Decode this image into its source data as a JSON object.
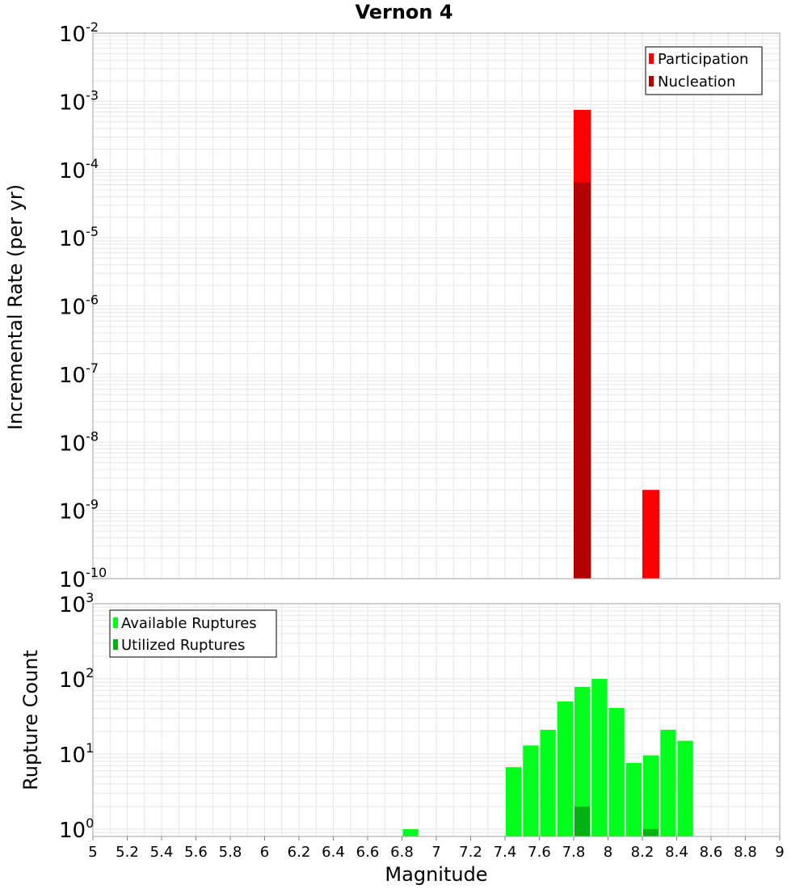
{
  "chart_data": [
    {
      "type": "bar",
      "title": "Vernon 4",
      "xlabel": "",
      "ylabel": "Incremental Rate (per yr)",
      "yscale": "log",
      "xlim": [
        5,
        9
      ],
      "ylim": [
        1e-10,
        0.01
      ],
      "yticks": [
        {
          "base": "10",
          "exp": "-2",
          "value": 0.01
        },
        {
          "base": "10",
          "exp": "-3",
          "value": 0.001
        },
        {
          "base": "10",
          "exp": "-4",
          "value": 0.0001
        },
        {
          "base": "10",
          "exp": "-5",
          "value": 1e-05
        },
        {
          "base": "10",
          "exp": "-6",
          "value": 1e-06
        },
        {
          "base": "10",
          "exp": "-7",
          "value": 1e-07
        },
        {
          "base": "10",
          "exp": "-8",
          "value": 1e-08
        },
        {
          "base": "10",
          "exp": "-9",
          "value": 1e-09
        },
        {
          "base": "10",
          "exp": "-10",
          "value": 1e-10
        }
      ],
      "grid": true,
      "legend_position": "top-right",
      "series": [
        {
          "name": "Participation",
          "color": "#ff0000",
          "points": [
            {
              "x": 7.85,
              "y": 0.00075
            },
            {
              "x": 8.25,
              "y": 2e-09
            }
          ]
        },
        {
          "name": "Nucleation",
          "color": "#b30000",
          "points": [
            {
              "x": 7.85,
              "y": 6.5e-05
            }
          ]
        }
      ]
    },
    {
      "type": "bar",
      "title": "",
      "xlabel": "Magnitude",
      "ylabel": "Rupture Count",
      "yscale": "log",
      "xlim": [
        5,
        9
      ],
      "ylim": [
        0.8,
        1000
      ],
      "yticks": [
        {
          "base": "10",
          "exp": "3",
          "value": 1000
        },
        {
          "base": "10",
          "exp": "2",
          "value": 100
        },
        {
          "base": "10",
          "exp": "1",
          "value": 10
        },
        {
          "base": "10",
          "exp": "0",
          "value": 1
        }
      ],
      "xticks": [
        "5",
        "5.2",
        "5.4",
        "5.6",
        "5.8",
        "6",
        "6.2",
        "6.4",
        "6.6",
        "6.8",
        "7",
        "7.2",
        "7.4",
        "7.6",
        "7.8",
        "8",
        "8.2",
        "8.4",
        "8.6",
        "8.8",
        "9"
      ],
      "grid": true,
      "legend_position": "top-left",
      "series": [
        {
          "name": "Available Ruptures",
          "color": "#00ff1a",
          "points": [
            {
              "x": 6.85,
              "y": 1
            },
            {
              "x": 7.45,
              "y": 6.7
            },
            {
              "x": 7.55,
              "y": 13
            },
            {
              "x": 7.65,
              "y": 21
            },
            {
              "x": 7.75,
              "y": 50
            },
            {
              "x": 7.85,
              "y": 78
            },
            {
              "x": 7.95,
              "y": 100
            },
            {
              "x": 8.05,
              "y": 41
            },
            {
              "x": 8.15,
              "y": 7.6
            },
            {
              "x": 8.25,
              "y": 9.6
            },
            {
              "x": 8.35,
              "y": 21
            },
            {
              "x": 8.45,
              "y": 15
            }
          ]
        },
        {
          "name": "Utilized Ruptures",
          "color": "#00b312",
          "points": [
            {
              "x": 7.85,
              "y": 2
            },
            {
              "x": 8.25,
              "y": 1
            }
          ]
        }
      ]
    }
  ]
}
